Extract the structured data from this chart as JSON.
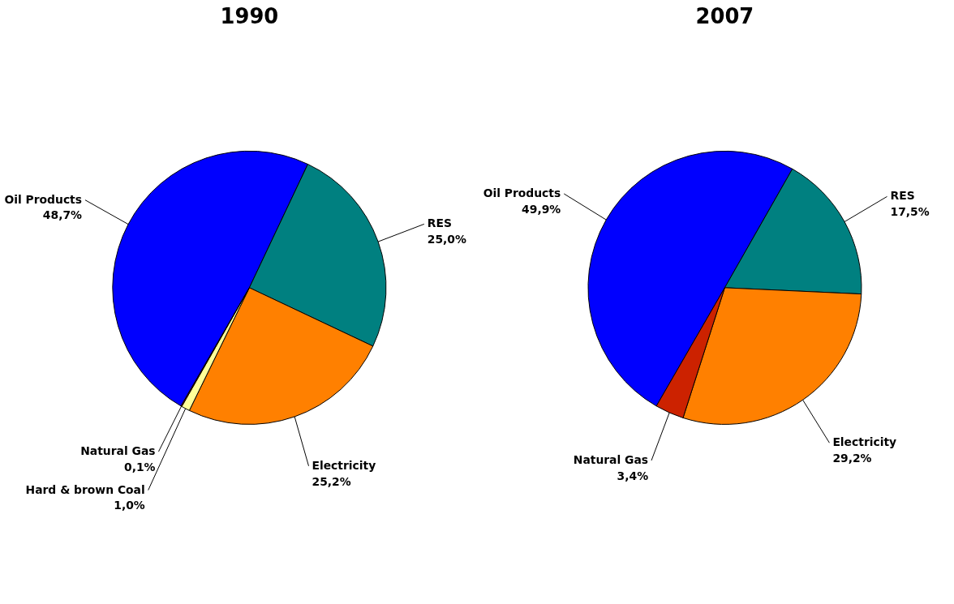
{
  "chart_data": [
    {
      "type": "pie",
      "title": "1990",
      "categories": [
        "Oil Products",
        "RES",
        "Electricity",
        "Hard & brown Coal",
        "Natural Gas"
      ],
      "values": [
        48.7,
        25.0,
        25.2,
        1.0,
        0.1
      ],
      "colors": [
        "#0000ff",
        "#008080",
        "#ff8000",
        "#ffff99",
        "#cc2200"
      ],
      "value_labels": [
        "48,7%",
        "25,0%",
        "25,2%",
        "1,0%",
        "0,1%"
      ],
      "legend": false
    },
    {
      "type": "pie",
      "title": "2007",
      "categories": [
        "Oil Products",
        "RES",
        "Electricity",
        "Natural Gas"
      ],
      "values": [
        49.9,
        17.5,
        29.2,
        3.4
      ],
      "colors": [
        "#0000ff",
        "#008080",
        "#ff8000",
        "#cc2200"
      ],
      "value_labels": [
        "49,9%",
        "17,5%",
        "29,2%",
        "3,4%"
      ],
      "legend": false
    }
  ]
}
